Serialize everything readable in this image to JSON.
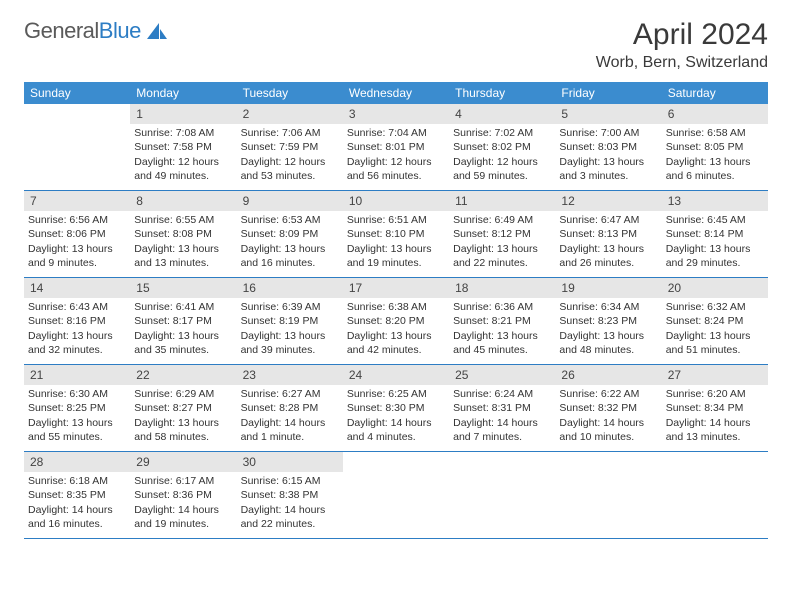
{
  "brand": {
    "part1": "General",
    "part2": "Blue"
  },
  "title": "April 2024",
  "location": "Worb, Bern, Switzerland",
  "theme": {
    "header_bg": "#3b8ccf",
    "header_fg": "#ffffff",
    "divider": "#2d7dc4",
    "daynum_bg": "#e6e6e6",
    "text": "#333333",
    "page_bg": "#ffffff"
  },
  "weekdays": [
    "Sunday",
    "Monday",
    "Tuesday",
    "Wednesday",
    "Thursday",
    "Friday",
    "Saturday"
  ],
  "weeks": [
    [
      {
        "n": "",
        "lines": []
      },
      {
        "n": "1",
        "lines": [
          "Sunrise: 7:08 AM",
          "Sunset: 7:58 PM",
          "Daylight: 12 hours and 49 minutes."
        ]
      },
      {
        "n": "2",
        "lines": [
          "Sunrise: 7:06 AM",
          "Sunset: 7:59 PM",
          "Daylight: 12 hours and 53 minutes."
        ]
      },
      {
        "n": "3",
        "lines": [
          "Sunrise: 7:04 AM",
          "Sunset: 8:01 PM",
          "Daylight: 12 hours and 56 minutes."
        ]
      },
      {
        "n": "4",
        "lines": [
          "Sunrise: 7:02 AM",
          "Sunset: 8:02 PM",
          "Daylight: 12 hours and 59 minutes."
        ]
      },
      {
        "n": "5",
        "lines": [
          "Sunrise: 7:00 AM",
          "Sunset: 8:03 PM",
          "Daylight: 13 hours and 3 minutes."
        ]
      },
      {
        "n": "6",
        "lines": [
          "Sunrise: 6:58 AM",
          "Sunset: 8:05 PM",
          "Daylight: 13 hours and 6 minutes."
        ]
      }
    ],
    [
      {
        "n": "7",
        "lines": [
          "Sunrise: 6:56 AM",
          "Sunset: 8:06 PM",
          "Daylight: 13 hours and 9 minutes."
        ]
      },
      {
        "n": "8",
        "lines": [
          "Sunrise: 6:55 AM",
          "Sunset: 8:08 PM",
          "Daylight: 13 hours and 13 minutes."
        ]
      },
      {
        "n": "9",
        "lines": [
          "Sunrise: 6:53 AM",
          "Sunset: 8:09 PM",
          "Daylight: 13 hours and 16 minutes."
        ]
      },
      {
        "n": "10",
        "lines": [
          "Sunrise: 6:51 AM",
          "Sunset: 8:10 PM",
          "Daylight: 13 hours and 19 minutes."
        ]
      },
      {
        "n": "11",
        "lines": [
          "Sunrise: 6:49 AM",
          "Sunset: 8:12 PM",
          "Daylight: 13 hours and 22 minutes."
        ]
      },
      {
        "n": "12",
        "lines": [
          "Sunrise: 6:47 AM",
          "Sunset: 8:13 PM",
          "Daylight: 13 hours and 26 minutes."
        ]
      },
      {
        "n": "13",
        "lines": [
          "Sunrise: 6:45 AM",
          "Sunset: 8:14 PM",
          "Daylight: 13 hours and 29 minutes."
        ]
      }
    ],
    [
      {
        "n": "14",
        "lines": [
          "Sunrise: 6:43 AM",
          "Sunset: 8:16 PM",
          "Daylight: 13 hours and 32 minutes."
        ]
      },
      {
        "n": "15",
        "lines": [
          "Sunrise: 6:41 AM",
          "Sunset: 8:17 PM",
          "Daylight: 13 hours and 35 minutes."
        ]
      },
      {
        "n": "16",
        "lines": [
          "Sunrise: 6:39 AM",
          "Sunset: 8:19 PM",
          "Daylight: 13 hours and 39 minutes."
        ]
      },
      {
        "n": "17",
        "lines": [
          "Sunrise: 6:38 AM",
          "Sunset: 8:20 PM",
          "Daylight: 13 hours and 42 minutes."
        ]
      },
      {
        "n": "18",
        "lines": [
          "Sunrise: 6:36 AM",
          "Sunset: 8:21 PM",
          "Daylight: 13 hours and 45 minutes."
        ]
      },
      {
        "n": "19",
        "lines": [
          "Sunrise: 6:34 AM",
          "Sunset: 8:23 PM",
          "Daylight: 13 hours and 48 minutes."
        ]
      },
      {
        "n": "20",
        "lines": [
          "Sunrise: 6:32 AM",
          "Sunset: 8:24 PM",
          "Daylight: 13 hours and 51 minutes."
        ]
      }
    ],
    [
      {
        "n": "21",
        "lines": [
          "Sunrise: 6:30 AM",
          "Sunset: 8:25 PM",
          "Daylight: 13 hours and 55 minutes."
        ]
      },
      {
        "n": "22",
        "lines": [
          "Sunrise: 6:29 AM",
          "Sunset: 8:27 PM",
          "Daylight: 13 hours and 58 minutes."
        ]
      },
      {
        "n": "23",
        "lines": [
          "Sunrise: 6:27 AM",
          "Sunset: 8:28 PM",
          "Daylight: 14 hours and 1 minute."
        ]
      },
      {
        "n": "24",
        "lines": [
          "Sunrise: 6:25 AM",
          "Sunset: 8:30 PM",
          "Daylight: 14 hours and 4 minutes."
        ]
      },
      {
        "n": "25",
        "lines": [
          "Sunrise: 6:24 AM",
          "Sunset: 8:31 PM",
          "Daylight: 14 hours and 7 minutes."
        ]
      },
      {
        "n": "26",
        "lines": [
          "Sunrise: 6:22 AM",
          "Sunset: 8:32 PM",
          "Daylight: 14 hours and 10 minutes."
        ]
      },
      {
        "n": "27",
        "lines": [
          "Sunrise: 6:20 AM",
          "Sunset: 8:34 PM",
          "Daylight: 14 hours and 13 minutes."
        ]
      }
    ],
    [
      {
        "n": "28",
        "lines": [
          "Sunrise: 6:18 AM",
          "Sunset: 8:35 PM",
          "Daylight: 14 hours and 16 minutes."
        ]
      },
      {
        "n": "29",
        "lines": [
          "Sunrise: 6:17 AM",
          "Sunset: 8:36 PM",
          "Daylight: 14 hours and 19 minutes."
        ]
      },
      {
        "n": "30",
        "lines": [
          "Sunrise: 6:15 AM",
          "Sunset: 8:38 PM",
          "Daylight: 14 hours and 22 minutes."
        ]
      },
      {
        "n": "",
        "lines": []
      },
      {
        "n": "",
        "lines": []
      },
      {
        "n": "",
        "lines": []
      },
      {
        "n": "",
        "lines": []
      }
    ]
  ]
}
